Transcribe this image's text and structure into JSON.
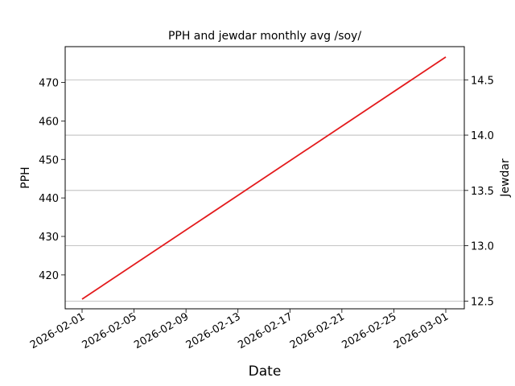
{
  "chart_data": {
    "type": "line",
    "title": "PPH and jewdar monthly avg /soy/",
    "xlabel": "Date",
    "ylabel_left": "PPH",
    "ylabel_right": "Jewdar",
    "x_tick_labels": [
      "2026-02-01",
      "2026-02-05",
      "2026-02-09",
      "2026-02-13",
      "2026-02-17",
      "2026-02-21",
      "2026-02-25",
      "2026-03-01"
    ],
    "x_range": [
      "2026-02-01",
      "2026-03-01"
    ],
    "y_left": {
      "ticks": [
        420,
        430,
        440,
        450,
        460,
        470
      ],
      "range": [
        411.2,
        479.3
      ]
    },
    "y_right": {
      "ticks": [
        12.5,
        13.0,
        13.5,
        14.0,
        14.5
      ],
      "range": [
        12.43,
        14.8
      ]
    },
    "grid": "horizontal (right axis)",
    "series": [
      {
        "axis": "left",
        "color": "#e31a1c",
        "x": [
          "2026-02-01",
          "2026-03-01"
        ],
        "values": [
          413.7,
          476.6
        ]
      }
    ]
  }
}
